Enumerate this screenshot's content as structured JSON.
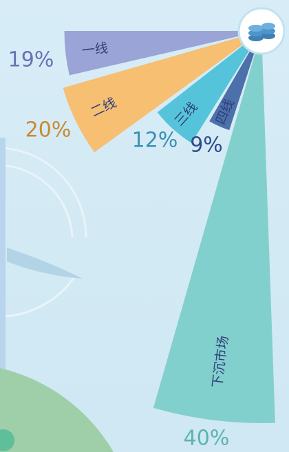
{
  "chart_data": {
    "type": "fan",
    "categories": [
      "一线",
      "二线",
      "三线",
      "四线",
      "下沉市场"
    ],
    "values": [
      19,
      20,
      12,
      9,
      40
    ],
    "value_labels": [
      "19%",
      "20%",
      "12%",
      "9%",
      "40%"
    ],
    "colors": [
      "#9ba4d6",
      "#f6bf72",
      "#55c4da",
      "#4c70aa",
      "#82d0cd"
    ],
    "label_colors": [
      "#6a70b6",
      "#c98a30",
      "#3a90b2",
      "#2e4b8c",
      "#5bb4b1"
    ]
  }
}
